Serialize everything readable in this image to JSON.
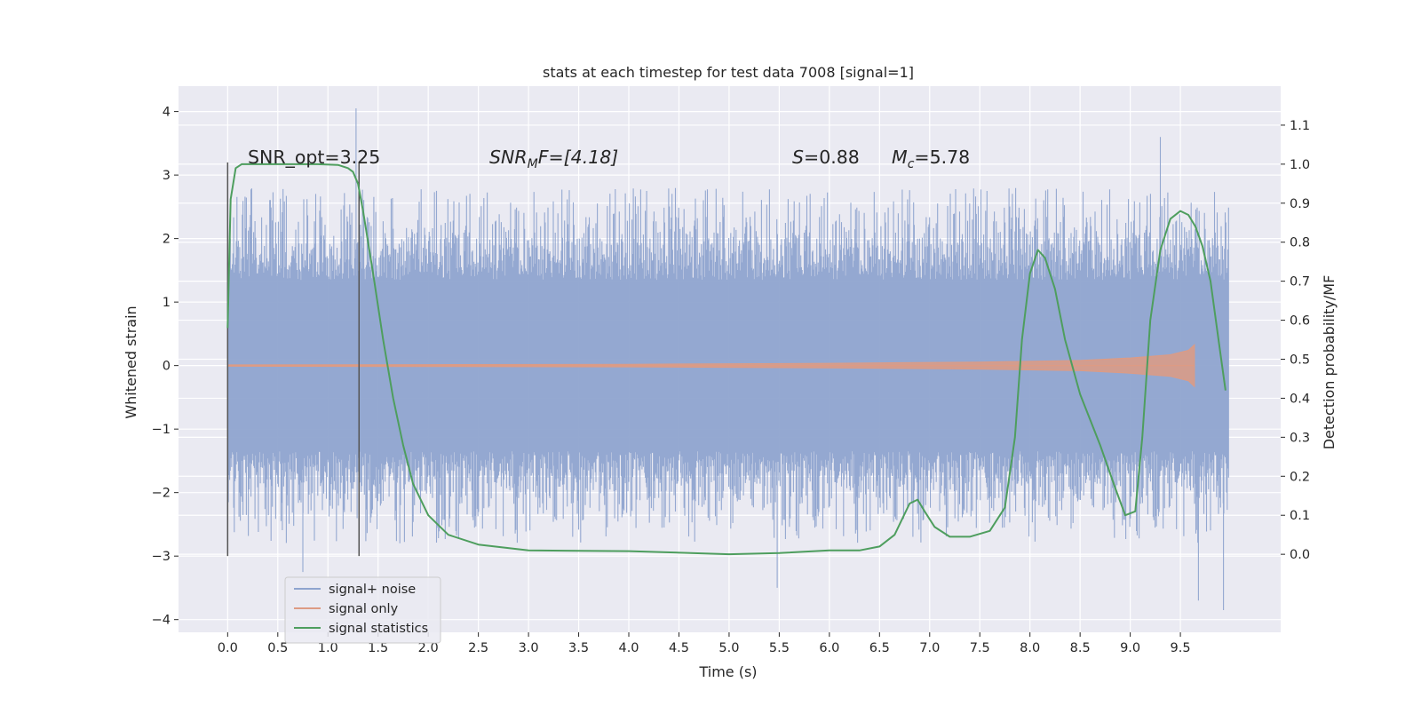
{
  "chart_data": {
    "type": "line",
    "title": "stats at each timestep for test data 7008 [signal=1]",
    "xlabel": "Time (s)",
    "ylabel_left": "Whitened strain",
    "ylabel_right": "Detection probability/MF",
    "xlim": [
      -0.49,
      10.5
    ],
    "ylim_left": [
      -4.2,
      4.4
    ],
    "ylim_right": [
      -0.2,
      1.2
    ],
    "x_ticks": [
      "0.0",
      "0.5",
      "1.0",
      "1.5",
      "2.0",
      "2.5",
      "3.0",
      "3.5",
      "4.0",
      "4.5",
      "5.0",
      "5.5",
      "6.0",
      "6.5",
      "7.0",
      "7.5",
      "8.0",
      "8.5",
      "9.0",
      "9.5"
    ],
    "y_left_ticks": [
      "4",
      "3",
      "2",
      "1",
      "0",
      "−1",
      "−2",
      "−3",
      "−4"
    ],
    "y_right_ticks": [
      "1.1",
      "1.0",
      "0.9",
      "0.8",
      "0.7",
      "0.6",
      "0.5",
      "0.4",
      "0.3",
      "0.2",
      "0.1",
      "0.0"
    ],
    "grid": true,
    "legend_position": "lower-left",
    "annotations": {
      "snr_opt": "SNR_opt=3.25",
      "snr_mf_main": "SNR",
      "snr_mf_sub": "M",
      "snr_mf_rest": "F=[4.18]",
      "s_italic": "S",
      "s_value": "=0.88",
      "mc_main": "M",
      "mc_sub": "c",
      "mc_value": "=5.78"
    },
    "vlines": [
      {
        "x": 0.0,
        "ymin": -3.0,
        "ymax": 3.2
      },
      {
        "x": 1.31,
        "ymin": -3.0,
        "ymax": 3.2
      }
    ],
    "series": [
      {
        "name": "signal+ noise",
        "color": "#8fa4cf",
        "axis": "left",
        "envelope": {
          "x_range": [
            0.0,
            9.98
          ],
          "core_abs": 1.35,
          "peak_abs_typical": [
            1.8,
            2.8
          ],
          "extremes": [
            {
              "x": 1.28,
              "y": 4.05
            },
            {
              "x": 9.3,
              "y": 3.6
            },
            {
              "x": 5.48,
              "y": -3.5
            },
            {
              "x": 9.68,
              "y": -3.7
            },
            {
              "x": 9.93,
              "y": -3.85
            },
            {
              "x": 0.75,
              "y": -3.25
            }
          ]
        }
      },
      {
        "name": "signal only",
        "color": "#dd9b84",
        "axis": "left",
        "envelope": {
          "x": [
            0.0,
            2.0,
            4.0,
            6.0,
            7.5,
            8.5,
            9.0,
            9.4,
            9.58,
            9.64
          ],
          "half_width": [
            0.01,
            0.015,
            0.02,
            0.035,
            0.055,
            0.08,
            0.12,
            0.17,
            0.24,
            0.33
          ]
        }
      },
      {
        "name": "signal statistics",
        "color": "#4e9e5e",
        "axis": "right",
        "x": [
          0.0,
          0.03,
          0.08,
          0.14,
          0.2,
          0.4,
          0.6,
          0.9,
          1.1,
          1.2,
          1.25,
          1.3,
          1.35,
          1.45,
          1.55,
          1.65,
          1.75,
          1.85,
          2.0,
          2.2,
          2.5,
          3.0,
          4.0,
          5.0,
          5.5,
          6.0,
          6.3,
          6.5,
          6.65,
          6.8,
          6.88,
          6.95,
          7.05,
          7.2,
          7.4,
          7.6,
          7.75,
          7.85,
          7.92,
          8.0,
          8.08,
          8.15,
          8.25,
          8.35,
          8.5,
          8.7,
          8.85,
          8.95,
          9.05,
          9.12,
          9.2,
          9.3,
          9.4,
          9.5,
          9.58,
          9.65,
          9.72,
          9.8,
          9.88,
          9.95
        ],
        "y": [
          0.58,
          0.91,
          0.99,
          1.0,
          1.0,
          1.0,
          1.0,
          1.0,
          0.998,
          0.99,
          0.98,
          0.95,
          0.88,
          0.72,
          0.55,
          0.4,
          0.28,
          0.18,
          0.1,
          0.05,
          0.025,
          0.01,
          0.008,
          0.0,
          0.003,
          0.01,
          0.01,
          0.02,
          0.05,
          0.13,
          0.14,
          0.11,
          0.07,
          0.045,
          0.045,
          0.06,
          0.12,
          0.3,
          0.55,
          0.72,
          0.78,
          0.76,
          0.68,
          0.55,
          0.41,
          0.28,
          0.17,
          0.1,
          0.11,
          0.3,
          0.6,
          0.78,
          0.86,
          0.88,
          0.87,
          0.84,
          0.79,
          0.7,
          0.55,
          0.42
        ]
      }
    ]
  }
}
